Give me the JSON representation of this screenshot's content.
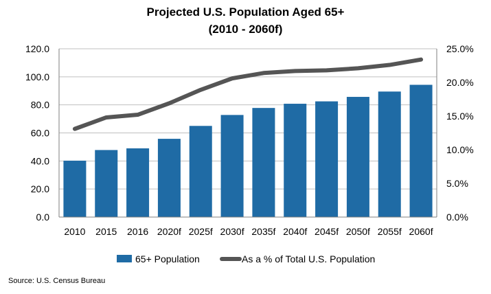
{
  "chart_data": {
    "type": "bar+line",
    "title": "Projected U.S. Population Aged 65+",
    "subtitle": "(2010 - 2060f)",
    "categories": [
      "2010",
      "2015",
      "2016",
      "2020f",
      "2025f",
      "2030f",
      "2035f",
      "2040f",
      "2045f",
      "2050f",
      "2055f",
      "2060f"
    ],
    "series": [
      {
        "name": "65+ Population",
        "type": "bar",
        "axis": "left",
        "color": "#1F6BA5",
        "values": [
          40.2,
          47.8,
          49.0,
          55.8,
          65.0,
          72.8,
          77.8,
          80.8,
          82.5,
          85.7,
          89.5,
          94.3
        ]
      },
      {
        "name": "As a % of Total U.S. Population",
        "type": "line",
        "axis": "right",
        "color": "#555555",
        "values": [
          13.1,
          14.8,
          15.2,
          16.9,
          18.9,
          20.6,
          21.4,
          21.7,
          21.8,
          22.1,
          22.6,
          23.4
        ]
      }
    ],
    "y_left": {
      "min": 0,
      "max": 120,
      "ticks": [
        "0.0",
        "20.0",
        "40.0",
        "60.0",
        "80.0",
        "100.0",
        "120.0"
      ]
    },
    "y_right": {
      "min": 0,
      "max": 25,
      "ticks": [
        "0.0%",
        "5.0%",
        "10.0%",
        "15.0%",
        "20.0%",
        "25.0%"
      ]
    },
    "grid": true,
    "legend": "bottom"
  },
  "source": "Source: U.S. Census Bureau"
}
